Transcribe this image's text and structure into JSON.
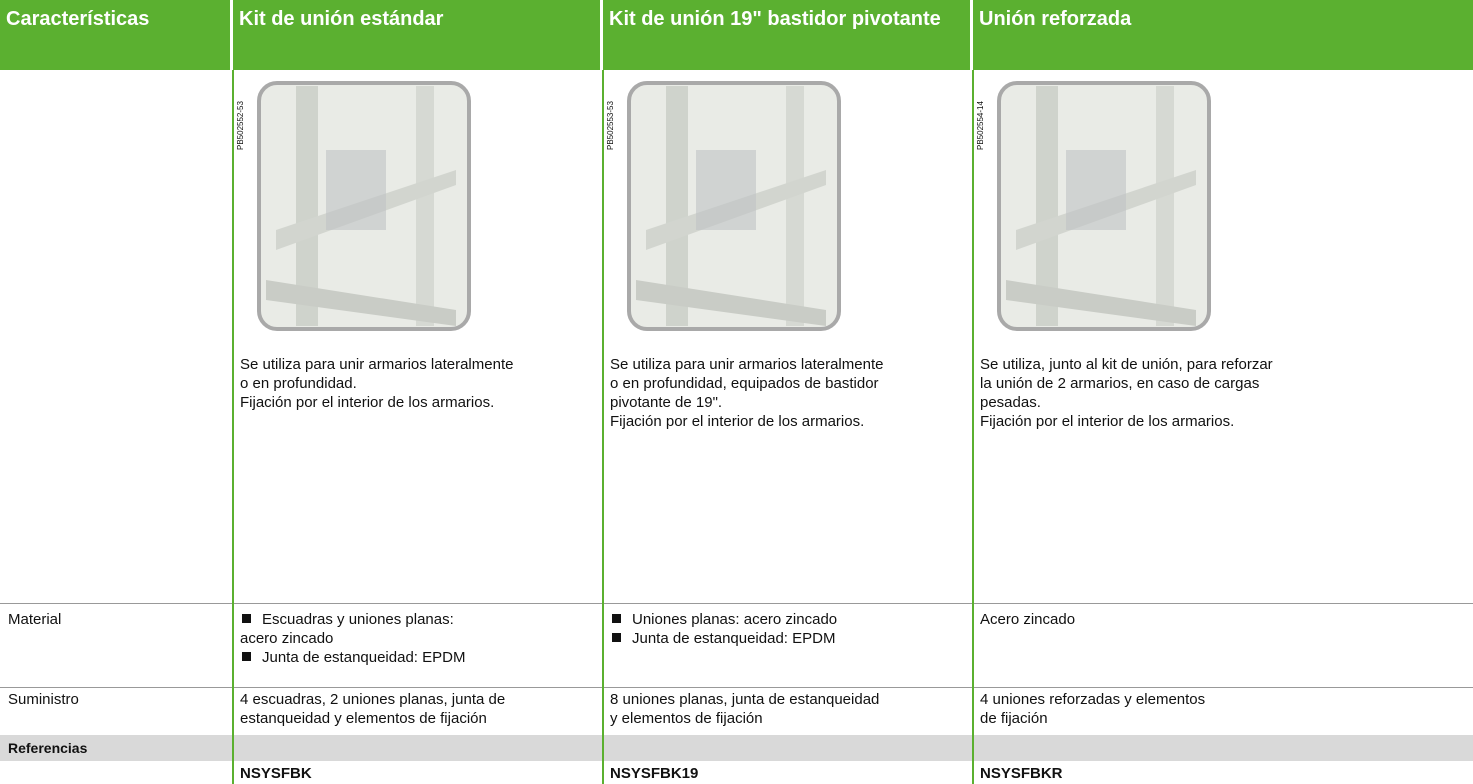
{
  "header": {
    "cells": [
      "Características",
      "Kit de unión estándar",
      "Kit de unión 19\" bastidor pivotante",
      "Unión reforzada"
    ]
  },
  "products": [
    {
      "image_code": "PB502552-53",
      "description": [
        "Se utiliza para unir armarios lateralmente",
        "o en profundidad.",
        "Fijación por el interior de los armarios."
      ],
      "material": {
        "bullets": [
          "Escuadras y uniones planas:",
          "Junta de estanqueidad: EPDM"
        ],
        "continuation": "acero zincado"
      },
      "suministro": [
        "4 escuadras, 2 uniones planas, junta de",
        "estanqueidad y elementos de fijación"
      ],
      "reference": "NSYSFBK"
    },
    {
      "image_code": "PB502553-53",
      "description": [
        "Se utiliza para unir armarios lateralmente",
        "o en profundidad, equipados de bastidor",
        "pivotante de 19\".",
        "Fijación por el interior de los armarios."
      ],
      "material": {
        "bullets": [
          "Uniones planas: acero zincado",
          "Junta de estanqueidad: EPDM"
        ]
      },
      "suministro": [
        "8 uniones planas, junta de estanqueidad",
        "y elementos de fijación"
      ],
      "reference": "NSYSFBK19"
    },
    {
      "image_code": "PB502554-14",
      "description": [
        "Se utiliza, junto al kit de unión, para reforzar",
        "la unión de 2 armarios, en caso de cargas",
        "pesadas.",
        "Fijación por el interior de los armarios."
      ],
      "material": {
        "text": "Acero zincado"
      },
      "suministro": [
        "4 uniones reforzadas y elementos",
        "de fijación"
      ],
      "reference": "NSYSFBKR"
    }
  ],
  "rows": {
    "material": "Material",
    "suministro": "Suministro",
    "referencias": "Referencias"
  }
}
